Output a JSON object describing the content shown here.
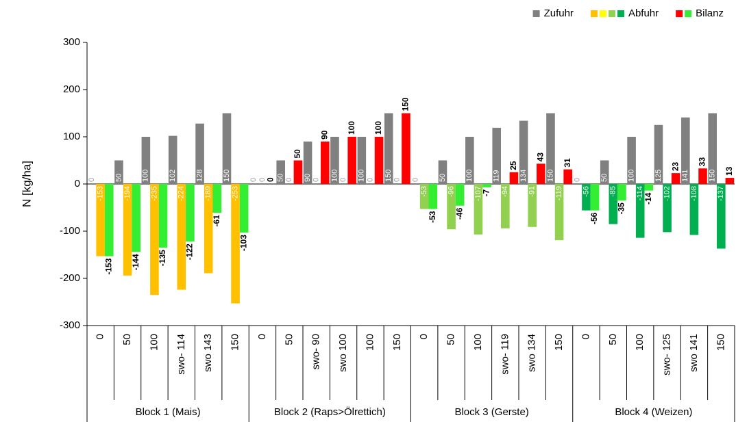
{
  "chart_data": {
    "type": "bar",
    "ylabel": "N [kg/ha]",
    "ylim": [
      -300,
      300
    ],
    "yticks": [
      -300,
      -200,
      -100,
      0,
      100,
      200,
      300
    ],
    "groups": [
      {
        "name": "Block 1 (Mais)",
        "categories": [
          "0",
          "50",
          "100",
          "swo- 114",
          "swo 143",
          "150"
        ]
      },
      {
        "name": "Block 2 (Raps>Ölrettich)",
        "categories": [
          "0",
          "50",
          "swo- 90",
          "swo 100",
          "100",
          "150"
        ]
      },
      {
        "name": "Block 3 (Gerste)",
        "categories": [
          "0",
          "50",
          "100",
          "swo- 119",
          "swo 134",
          "150"
        ]
      },
      {
        "name": "Block 4 (Weizen)",
        "categories": [
          "0",
          "50",
          "100",
          "swo- 125",
          "swo 141",
          "150"
        ]
      }
    ],
    "series": [
      {
        "name": "Zufuhr",
        "legend_colors": [
          "#808080"
        ],
        "colors": [
          "#808080",
          "#808080",
          "#808080",
          "#808080",
          "#808080",
          "#808080",
          "#808080",
          "#808080",
          "#808080",
          "#808080",
          "#808080",
          "#808080",
          "#808080",
          "#808080",
          "#808080",
          "#808080",
          "#808080",
          "#808080",
          "#808080",
          "#808080",
          "#808080",
          "#808080",
          "#808080",
          "#808080"
        ],
        "values": [
          0,
          50,
          100,
          102,
          128,
          150,
          0,
          50,
          90,
          100,
          100,
          150,
          0,
          50,
          100,
          119,
          134,
          150,
          0,
          50,
          100,
          125,
          141,
          150
        ]
      },
      {
        "name": "Abfuhr",
        "legend_colors": [
          "#ffc000",
          "#ffff00",
          "#92d050",
          "#00b050"
        ],
        "colors": [
          "#ffc000",
          "#ffc000",
          "#ffc000",
          "#ffc000",
          "#ffc000",
          "#ffc000",
          "#ffff00",
          "#ffff00",
          "#ffff00",
          "#ffff00",
          "#ffff00",
          "#ffff00",
          "#92d050",
          "#92d050",
          "#92d050",
          "#92d050",
          "#92d050",
          "#92d050",
          "#00b050",
          "#00b050",
          "#00b050",
          "#00b050",
          "#00b050",
          "#00b050"
        ],
        "values": [
          -153,
          -194,
          -235,
          -224,
          -189,
          -253,
          0,
          0,
          0,
          0,
          0,
          0,
          -53,
          -96,
          -107,
          -94,
          -91,
          -119,
          -56,
          -85,
          -114,
          -102,
          -108,
          -137
        ]
      },
      {
        "name": "Bilanz",
        "legend_colors": [
          "#ff0000",
          "#33ee33"
        ],
        "colors": [
          "#33ee33",
          "#33ee33",
          "#33ee33",
          "#33ee33",
          "#33ee33",
          "#33ee33",
          "#ff0000",
          "#ff0000",
          "#ff0000",
          "#ff0000",
          "#ff0000",
          "#ff0000",
          "#33ee33",
          "#33ee33",
          "#33ee33",
          "#ff0000",
          "#ff0000",
          "#ff0000",
          "#33ee33",
          "#33ee33",
          "#33ee33",
          "#ff0000",
          "#ff0000",
          "#ff0000"
        ],
        "values": [
          -153,
          -144,
          -135,
          -122,
          -61,
          -103,
          0,
          50,
          90,
          100,
          100,
          150,
          -53,
          -46,
          -7,
          25,
          43,
          31,
          -56,
          -35,
          -14,
          23,
          33,
          13
        ]
      }
    ]
  }
}
